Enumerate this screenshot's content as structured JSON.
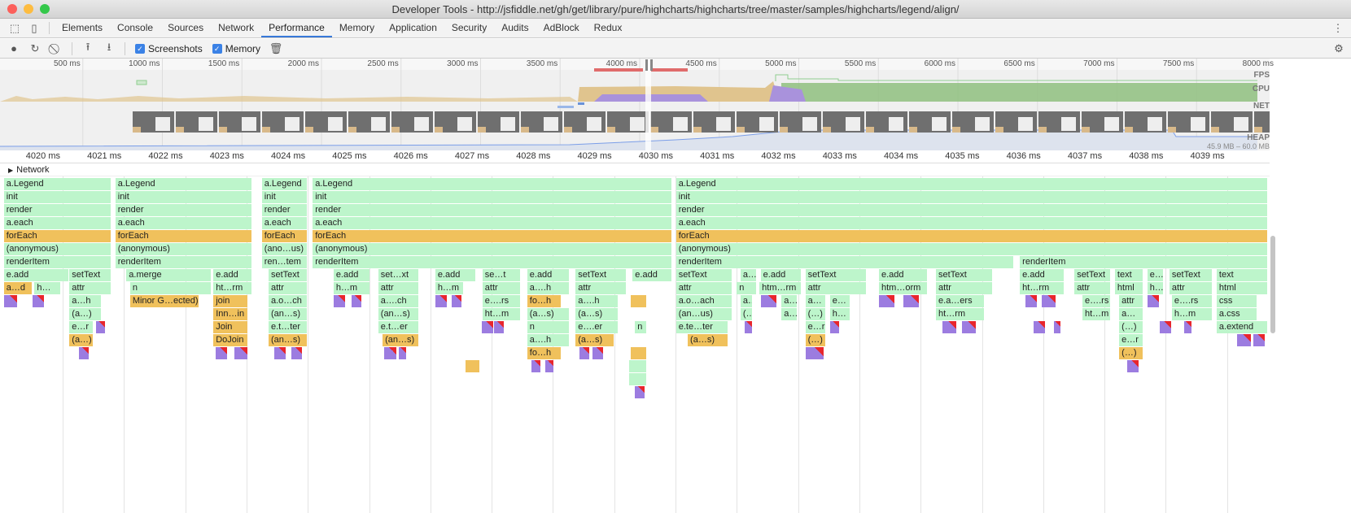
{
  "window": {
    "title": "Developer Tools - http://jsfiddle.net/gh/get/library/pure/highcharts/highcharts/tree/master/samples/highcharts/legend/align/"
  },
  "tabs": [
    {
      "label": "Elements"
    },
    {
      "label": "Console"
    },
    {
      "label": "Sources"
    },
    {
      "label": "Network"
    },
    {
      "label": "Performance",
      "active": true
    },
    {
      "label": "Memory"
    },
    {
      "label": "Application"
    },
    {
      "label": "Security"
    },
    {
      "label": "Audits"
    },
    {
      "label": "AdBlock"
    },
    {
      "label": "Redux"
    }
  ],
  "toolbar": {
    "screenshots_label": "Screenshots",
    "memory_label": "Memory",
    "screenshots_checked": true,
    "memory_checked": true
  },
  "overview": {
    "ticks": [
      "500 ms",
      "1000 ms",
      "1500 ms",
      "2000 ms",
      "2500 ms",
      "3000 ms",
      "3500 ms",
      "4000 ms",
      "4500 ms",
      "5000 ms",
      "5500 ms",
      "6000 ms",
      "6500 ms",
      "7000 ms",
      "7500 ms",
      "8000 ms"
    ],
    "tracks": {
      "fps": "FPS",
      "cpu": "CPU",
      "net": "NET",
      "heap": "HEAP"
    },
    "heap_range": "45.9 MB – 60.0 MB",
    "colors": {
      "scripting": "#f0c15c",
      "rendering": "#9c7ce0",
      "painting": "#8fbf7f",
      "fps": "#8fce8f",
      "long_frame": "#e06b6b",
      "heap": "#7b9ee8"
    }
  },
  "ruler": {
    "ticks": [
      "4020 ms",
      "4021 ms",
      "4022 ms",
      "4023 ms",
      "4024 ms",
      "4025 ms",
      "4026 ms",
      "4027 ms",
      "4028 ms",
      "4029 ms",
      "4030 ms",
      "4031 ms",
      "4032 ms",
      "4033 ms",
      "4034 ms",
      "4035 ms",
      "4036 ms",
      "4037 ms",
      "4038 ms",
      "4039 ms",
      "404"
    ]
  },
  "network_label": "Network",
  "flame": [
    [
      0,
      4019.04,
      4020.8,
      "a.Legend",
      "g"
    ],
    [
      1,
      4019.04,
      4020.8,
      "init",
      "g"
    ],
    [
      2,
      4019.04,
      4020.8,
      "render",
      "g"
    ],
    [
      3,
      4019.04,
      4020.8,
      "a.each",
      "g"
    ],
    [
      4,
      4019.04,
      4020.8,
      "forEach",
      "y"
    ],
    [
      5,
      4019.04,
      4020.8,
      "(anonymous)",
      "g"
    ],
    [
      6,
      4019.04,
      4020.8,
      "renderItem",
      "g"
    ],
    [
      0,
      4020.86,
      4023.09,
      "a.Legend",
      "g"
    ],
    [
      1,
      4020.86,
      4023.09,
      "init",
      "g"
    ],
    [
      2,
      4020.86,
      4023.09,
      "render",
      "g"
    ],
    [
      3,
      4020.86,
      4023.09,
      "a.each",
      "g"
    ],
    [
      4,
      4020.86,
      4023.09,
      "forEach",
      "y"
    ],
    [
      5,
      4020.86,
      4023.09,
      "(anonymous)",
      "g"
    ],
    [
      6,
      4020.86,
      4023.09,
      "renderItem",
      "g"
    ],
    [
      0,
      4023.25,
      4024.0,
      "a.Legend",
      "g"
    ],
    [
      1,
      4023.25,
      4024.0,
      "init",
      "g"
    ],
    [
      2,
      4023.25,
      4024.0,
      "render",
      "g"
    ],
    [
      3,
      4023.25,
      4024.0,
      "a.each",
      "g"
    ],
    [
      4,
      4023.25,
      4024.0,
      "forEach",
      "y"
    ],
    [
      5,
      4023.25,
      4024.0,
      "(ano…us)",
      "g"
    ],
    [
      6,
      4023.25,
      4024.0,
      "ren…tem",
      "g"
    ],
    [
      0,
      4024.08,
      4029.95,
      "a.Legend",
      "g"
    ],
    [
      1,
      4024.08,
      4029.95,
      "init",
      "g"
    ],
    [
      2,
      4024.08,
      4029.95,
      "render",
      "g"
    ],
    [
      3,
      4024.08,
      4029.95,
      "a.each",
      "g"
    ],
    [
      4,
      4024.08,
      4029.95,
      "forEach",
      "y"
    ],
    [
      5,
      4024.08,
      4029.95,
      "(anonymous)",
      "g"
    ],
    [
      6,
      4024.08,
      4029.95,
      "renderItem",
      "g"
    ],
    [
      0,
      4030.01,
      4039.67,
      "a.Legend",
      "g"
    ],
    [
      1,
      4030.01,
      4039.67,
      "init",
      "g"
    ],
    [
      2,
      4030.01,
      4039.67,
      "render",
      "g"
    ],
    [
      3,
      4030.01,
      4039.67,
      "a.each",
      "g"
    ],
    [
      4,
      4030.01,
      4039.67,
      "forEach",
      "y"
    ],
    [
      5,
      4030.01,
      4039.67,
      "(anonymous)",
      "g"
    ],
    [
      6,
      4030.01,
      4035.52,
      "renderItem",
      "g"
    ],
    [
      6,
      4035.62,
      4039.67,
      "renderItem",
      "g"
    ],
    [
      7,
      4019.04,
      4020.1,
      "e.add",
      "g"
    ],
    [
      7,
      4020.11,
      4020.8,
      "setText",
      "g"
    ],
    [
      7,
      4021.04,
      4022.43,
      "a.merge",
      "g"
    ],
    [
      7,
      4022.46,
      4023.09,
      "e.add",
      "g"
    ],
    [
      7,
      4023.36,
      4024.0,
      "setText",
      "g"
    ],
    [
      7,
      4024.42,
      4025.02,
      "e.add",
      "g"
    ],
    [
      7,
      4025.15,
      4025.82,
      "set…xt",
      "g"
    ],
    [
      7,
      4026.08,
      4026.75,
      "e.add",
      "g"
    ],
    [
      7,
      4026.85,
      4027.48,
      "se…t",
      "g"
    ],
    [
      7,
      4027.58,
      4028.27,
      "e.add",
      "g"
    ],
    [
      7,
      4028.37,
      4029.2,
      "setText",
      "g"
    ],
    [
      7,
      4029.3,
      4029.95,
      "e.add",
      "g"
    ],
    [
      7,
      4030.01,
      4030.93,
      "setText",
      "g"
    ],
    [
      7,
      4031.06,
      4031.33,
      "a…",
      "g"
    ],
    [
      7,
      4031.39,
      4032.06,
      "e.add",
      "g"
    ],
    [
      7,
      4032.12,
      4033.12,
      "setText",
      "g"
    ],
    [
      7,
      4033.32,
      4034.12,
      "e.add",
      "g"
    ],
    [
      7,
      4034.25,
      4035.18,
      "setText",
      "g"
    ],
    [
      7,
      4035.62,
      4036.35,
      "e.add",
      "g"
    ],
    [
      7,
      4036.51,
      4037.1,
      "setText",
      "g"
    ],
    [
      7,
      4037.17,
      4037.64,
      "text",
      "g"
    ],
    [
      7,
      4037.7,
      4037.97,
      "e…",
      "g"
    ],
    [
      7,
      4038.06,
      4038.76,
      "setText",
      "g"
    ],
    [
      7,
      4038.83,
      4039.67,
      "text",
      "g"
    ],
    [
      8,
      4019.04,
      4019.51,
      "a…d",
      "y"
    ],
    [
      8,
      4019.54,
      4019.97,
      "h…",
      "g"
    ],
    [
      8,
      4020.11,
      4020.8,
      "attr",
      "g"
    ],
    [
      8,
      4021.1,
      4022.43,
      "n",
      "g"
    ],
    [
      8,
      4022.46,
      4023.09,
      "ht…rm",
      "g"
    ],
    [
      8,
      4023.36,
      4024.0,
      "attr",
      "g"
    ],
    [
      8,
      4024.42,
      4025.02,
      "h…m",
      "g"
    ],
    [
      8,
      4025.15,
      4025.82,
      "attr",
      "g"
    ],
    [
      8,
      4026.08,
      4026.55,
      "h…m",
      "g"
    ],
    [
      8,
      4026.85,
      4027.48,
      "attr",
      "g"
    ],
    [
      8,
      4027.58,
      4028.27,
      "a….h",
      "g"
    ],
    [
      8,
      4028.37,
      4029.2,
      "attr",
      "g"
    ],
    [
      8,
      4030.01,
      4030.93,
      "attr",
      "g"
    ],
    [
      8,
      4031.0,
      4031.33,
      "n",
      "g"
    ],
    [
      8,
      4031.37,
      4032.06,
      "htm…rm",
      "g"
    ],
    [
      8,
      4032.12,
      4033.12,
      "attr",
      "g"
    ],
    [
      8,
      4033.32,
      4034.12,
      "htm…orm",
      "g"
    ],
    [
      8,
      4034.25,
      4035.18,
      "attr",
      "g"
    ],
    [
      8,
      4035.62,
      4036.35,
      "ht…rm",
      "g"
    ],
    [
      8,
      4036.51,
      4037.1,
      "attr",
      "g"
    ],
    [
      8,
      4037.17,
      4037.64,
      "html",
      "g"
    ],
    [
      8,
      4037.7,
      4037.97,
      "h…",
      "g"
    ],
    [
      8,
      4038.06,
      4038.76,
      "attr",
      "g"
    ],
    [
      8,
      4038.83,
      4039.67,
      "html",
      "g"
    ],
    [
      9,
      4019.04,
      4019.27,
      "",
      "p"
    ],
    [
      9,
      4019.51,
      4019.71,
      "",
      "p"
    ],
    [
      9,
      4020.11,
      4020.64,
      "a…h",
      "g"
    ],
    [
      9,
      4021.1,
      4022.23,
      "Minor G…ected)",
      "y"
    ],
    [
      9,
      4022.46,
      4023.03,
      "join",
      "y"
    ],
    [
      9,
      4023.36,
      4024.0,
      "a.o…ch",
      "g"
    ],
    [
      9,
      4024.42,
      4024.62,
      "",
      "p"
    ],
    [
      9,
      4024.71,
      4024.89,
      "",
      "p"
    ],
    [
      9,
      4025.15,
      4025.82,
      "a….ch",
      "g"
    ],
    [
      9,
      4026.08,
      4026.28,
      "",
      "p"
    ],
    [
      9,
      4026.35,
      4026.52,
      "",
      "p"
    ],
    [
      9,
      4026.85,
      4027.48,
      "e….rs",
      "g"
    ],
    [
      9,
      4027.58,
      4028.14,
      "fo…h",
      "y"
    ],
    [
      9,
      4028.37,
      4029.07,
      "a….h",
      "g"
    ],
    [
      9,
      4029.27,
      4029.54,
      "",
      "y"
    ],
    [
      9,
      4030.01,
      4030.93,
      "a.o…ach",
      "g"
    ],
    [
      9,
      4031.06,
      4031.26,
      "a…",
      "g"
    ],
    [
      9,
      4031.39,
      4031.66,
      "",
      "p"
    ],
    [
      9,
      4031.73,
      4031.99,
      "a…",
      "g"
    ],
    [
      9,
      4032.12,
      4032.46,
      "a…",
      "g"
    ],
    [
      9,
      4032.52,
      4032.86,
      "e…",
      "g"
    ],
    [
      9,
      4033.32,
      4033.59,
      "",
      "p"
    ],
    [
      9,
      4033.72,
      4033.98,
      "",
      "p"
    ],
    [
      9,
      4034.25,
      4035.05,
      "e.a…ers",
      "g"
    ],
    [
      9,
      4035.71,
      4035.91,
      "",
      "p"
    ],
    [
      9,
      4035.97,
      4036.22,
      "",
      "p"
    ],
    [
      9,
      4036.64,
      4037.1,
      "e….rs",
      "g"
    ],
    [
      9,
      4037.24,
      4037.64,
      "attr",
      "g"
    ],
    [
      9,
      4037.7,
      4037.9,
      "",
      "p"
    ],
    [
      9,
      4038.1,
      4038.76,
      "e….rs",
      "g"
    ],
    [
      9,
      4038.83,
      4039.49,
      "css",
      "g"
    ],
    [
      10,
      4020.11,
      4020.64,
      "(a…)",
      "g"
    ],
    [
      10,
      4022.46,
      4023.03,
      "Inn…in",
      "y"
    ],
    [
      10,
      4023.36,
      4024.0,
      "(an…s)",
      "g"
    ],
    [
      10,
      4025.15,
      4025.82,
      "(an…s)",
      "g"
    ],
    [
      10,
      4026.85,
      4027.48,
      "ht…m",
      "g"
    ],
    [
      10,
      4027.58,
      4028.27,
      "(a…s)",
      "g"
    ],
    [
      10,
      4028.37,
      4029.07,
      "(a…s)",
      "g"
    ],
    [
      10,
      4030.01,
      4030.93,
      "(an…us)",
      "g"
    ],
    [
      10,
      4031.06,
      4031.26,
      "(…)",
      "g"
    ],
    [
      10,
      4031.73,
      4031.99,
      "a…",
      "g"
    ],
    [
      10,
      4032.12,
      4032.46,
      "(…)",
      "g"
    ],
    [
      10,
      4032.52,
      4032.86,
      "h…",
      "g"
    ],
    [
      10,
      4034.25,
      4035.05,
      "ht…rm",
      "g"
    ],
    [
      10,
      4036.64,
      4037.1,
      "ht…m",
      "g"
    ],
    [
      10,
      4037.24,
      4037.64,
      "a…",
      "g"
    ],
    [
      10,
      4038.1,
      4038.76,
      "h…m",
      "g"
    ],
    [
      10,
      4038.83,
      4039.49,
      "a.css",
      "g"
    ],
    [
      11,
      4020.11,
      4020.5,
      "e…r",
      "g"
    ],
    [
      11,
      4020.54,
      4020.7,
      "",
      "p"
    ],
    [
      11,
      4022.46,
      4023.03,
      "Join",
      "y"
    ],
    [
      11,
      4023.36,
      4024.0,
      "e.t…ter",
      "g"
    ],
    [
      11,
      4025.15,
      4025.82,
      "e.t…er",
      "g"
    ],
    [
      11,
      4026.84,
      4027.04,
      "",
      "p"
    ],
    [
      11,
      4027.04,
      4027.21,
      "",
      "p"
    ],
    [
      11,
      4027.58,
      4028.27,
      "n",
      "g"
    ],
    [
      11,
      4028.37,
      4029.07,
      "e….er",
      "g"
    ],
    [
      11,
      4029.34,
      4029.54,
      "n",
      "g"
    ],
    [
      11,
      4030.01,
      4030.86,
      "e.te…ter",
      "g"
    ],
    [
      11,
      4031.13,
      4031.26,
      "",
      "p"
    ],
    [
      11,
      4032.12,
      4032.46,
      "e…r",
      "g"
    ],
    [
      11,
      4032.52,
      4032.68,
      "",
      "p"
    ],
    [
      11,
      4034.36,
      4034.59,
      "",
      "p"
    ],
    [
      11,
      4034.67,
      4034.91,
      "",
      "p"
    ],
    [
      11,
      4035.84,
      4036.04,
      "",
      "p"
    ],
    [
      11,
      4036.17,
      4036.29,
      "",
      "p"
    ],
    [
      11,
      4037.24,
      4037.64,
      "(…)",
      "g"
    ],
    [
      11,
      4037.9,
      4038.1,
      "",
      "p"
    ],
    [
      11,
      4038.3,
      4038.43,
      "",
      "p"
    ],
    [
      11,
      4038.83,
      4039.67,
      "a.extend",
      "g"
    ],
    [
      12,
      4020.11,
      4020.5,
      "(a…)",
      "y"
    ],
    [
      12,
      4022.46,
      4023.03,
      "DoJoin",
      "y"
    ],
    [
      12,
      4023.36,
      4024.0,
      "(an…s)",
      "y"
    ],
    [
      12,
      4025.22,
      4025.82,
      "(an…s)",
      "y"
    ],
    [
      12,
      4027.58,
      4028.27,
      "a….h",
      "g"
    ],
    [
      12,
      4028.37,
      4029.0,
      "(a…s)",
      "y"
    ],
    [
      12,
      4030.2,
      4030.86,
      "(a…s)",
      "y"
    ],
    [
      12,
      4032.12,
      4032.46,
      "(…)",
      "y"
    ],
    [
      12,
      4037.24,
      4037.64,
      "e…r",
      "g"
    ],
    [
      12,
      4039.16,
      4039.4,
      "",
      "p"
    ],
    [
      12,
      4039.43,
      4039.63,
      "",
      "p"
    ],
    [
      13,
      4020.27,
      4020.44,
      "",
      "p"
    ],
    [
      13,
      4022.5,
      4022.7,
      "",
      "p"
    ],
    [
      13,
      4022.8,
      4023.03,
      "",
      "p"
    ],
    [
      13,
      4023.45,
      4023.65,
      "",
      "p"
    ],
    [
      13,
      4023.73,
      4023.92,
      "",
      "p"
    ],
    [
      13,
      4025.25,
      4025.46,
      "",
      "p"
    ],
    [
      13,
      4025.48,
      4025.62,
      "",
      "p"
    ],
    [
      13,
      4027.58,
      4028.14,
      "fo…h",
      "y"
    ],
    [
      13,
      4028.43,
      4028.61,
      "",
      "p"
    ],
    [
      13,
      4028.65,
      4028.83,
      "",
      "p"
    ],
    [
      13,
      4029.27,
      4029.54,
      "",
      "y"
    ],
    [
      13,
      4032.12,
      4032.43,
      "",
      "p"
    ],
    [
      13,
      4037.24,
      4037.64,
      "(…)",
      "y"
    ],
    [
      14,
      4026.57,
      4026.81,
      "",
      "y"
    ],
    [
      14,
      4027.65,
      4027.81,
      "",
      "p"
    ],
    [
      14,
      4027.88,
      4028.02,
      "",
      "p"
    ],
    [
      14,
      4029.24,
      4029.54,
      "",
      "g"
    ],
    [
      14,
      4037.37,
      4037.57,
      "",
      "p"
    ],
    [
      15,
      4029.24,
      4029.54,
      "",
      "g"
    ],
    [
      16,
      4029.34,
      4029.51,
      "",
      "p"
    ]
  ]
}
